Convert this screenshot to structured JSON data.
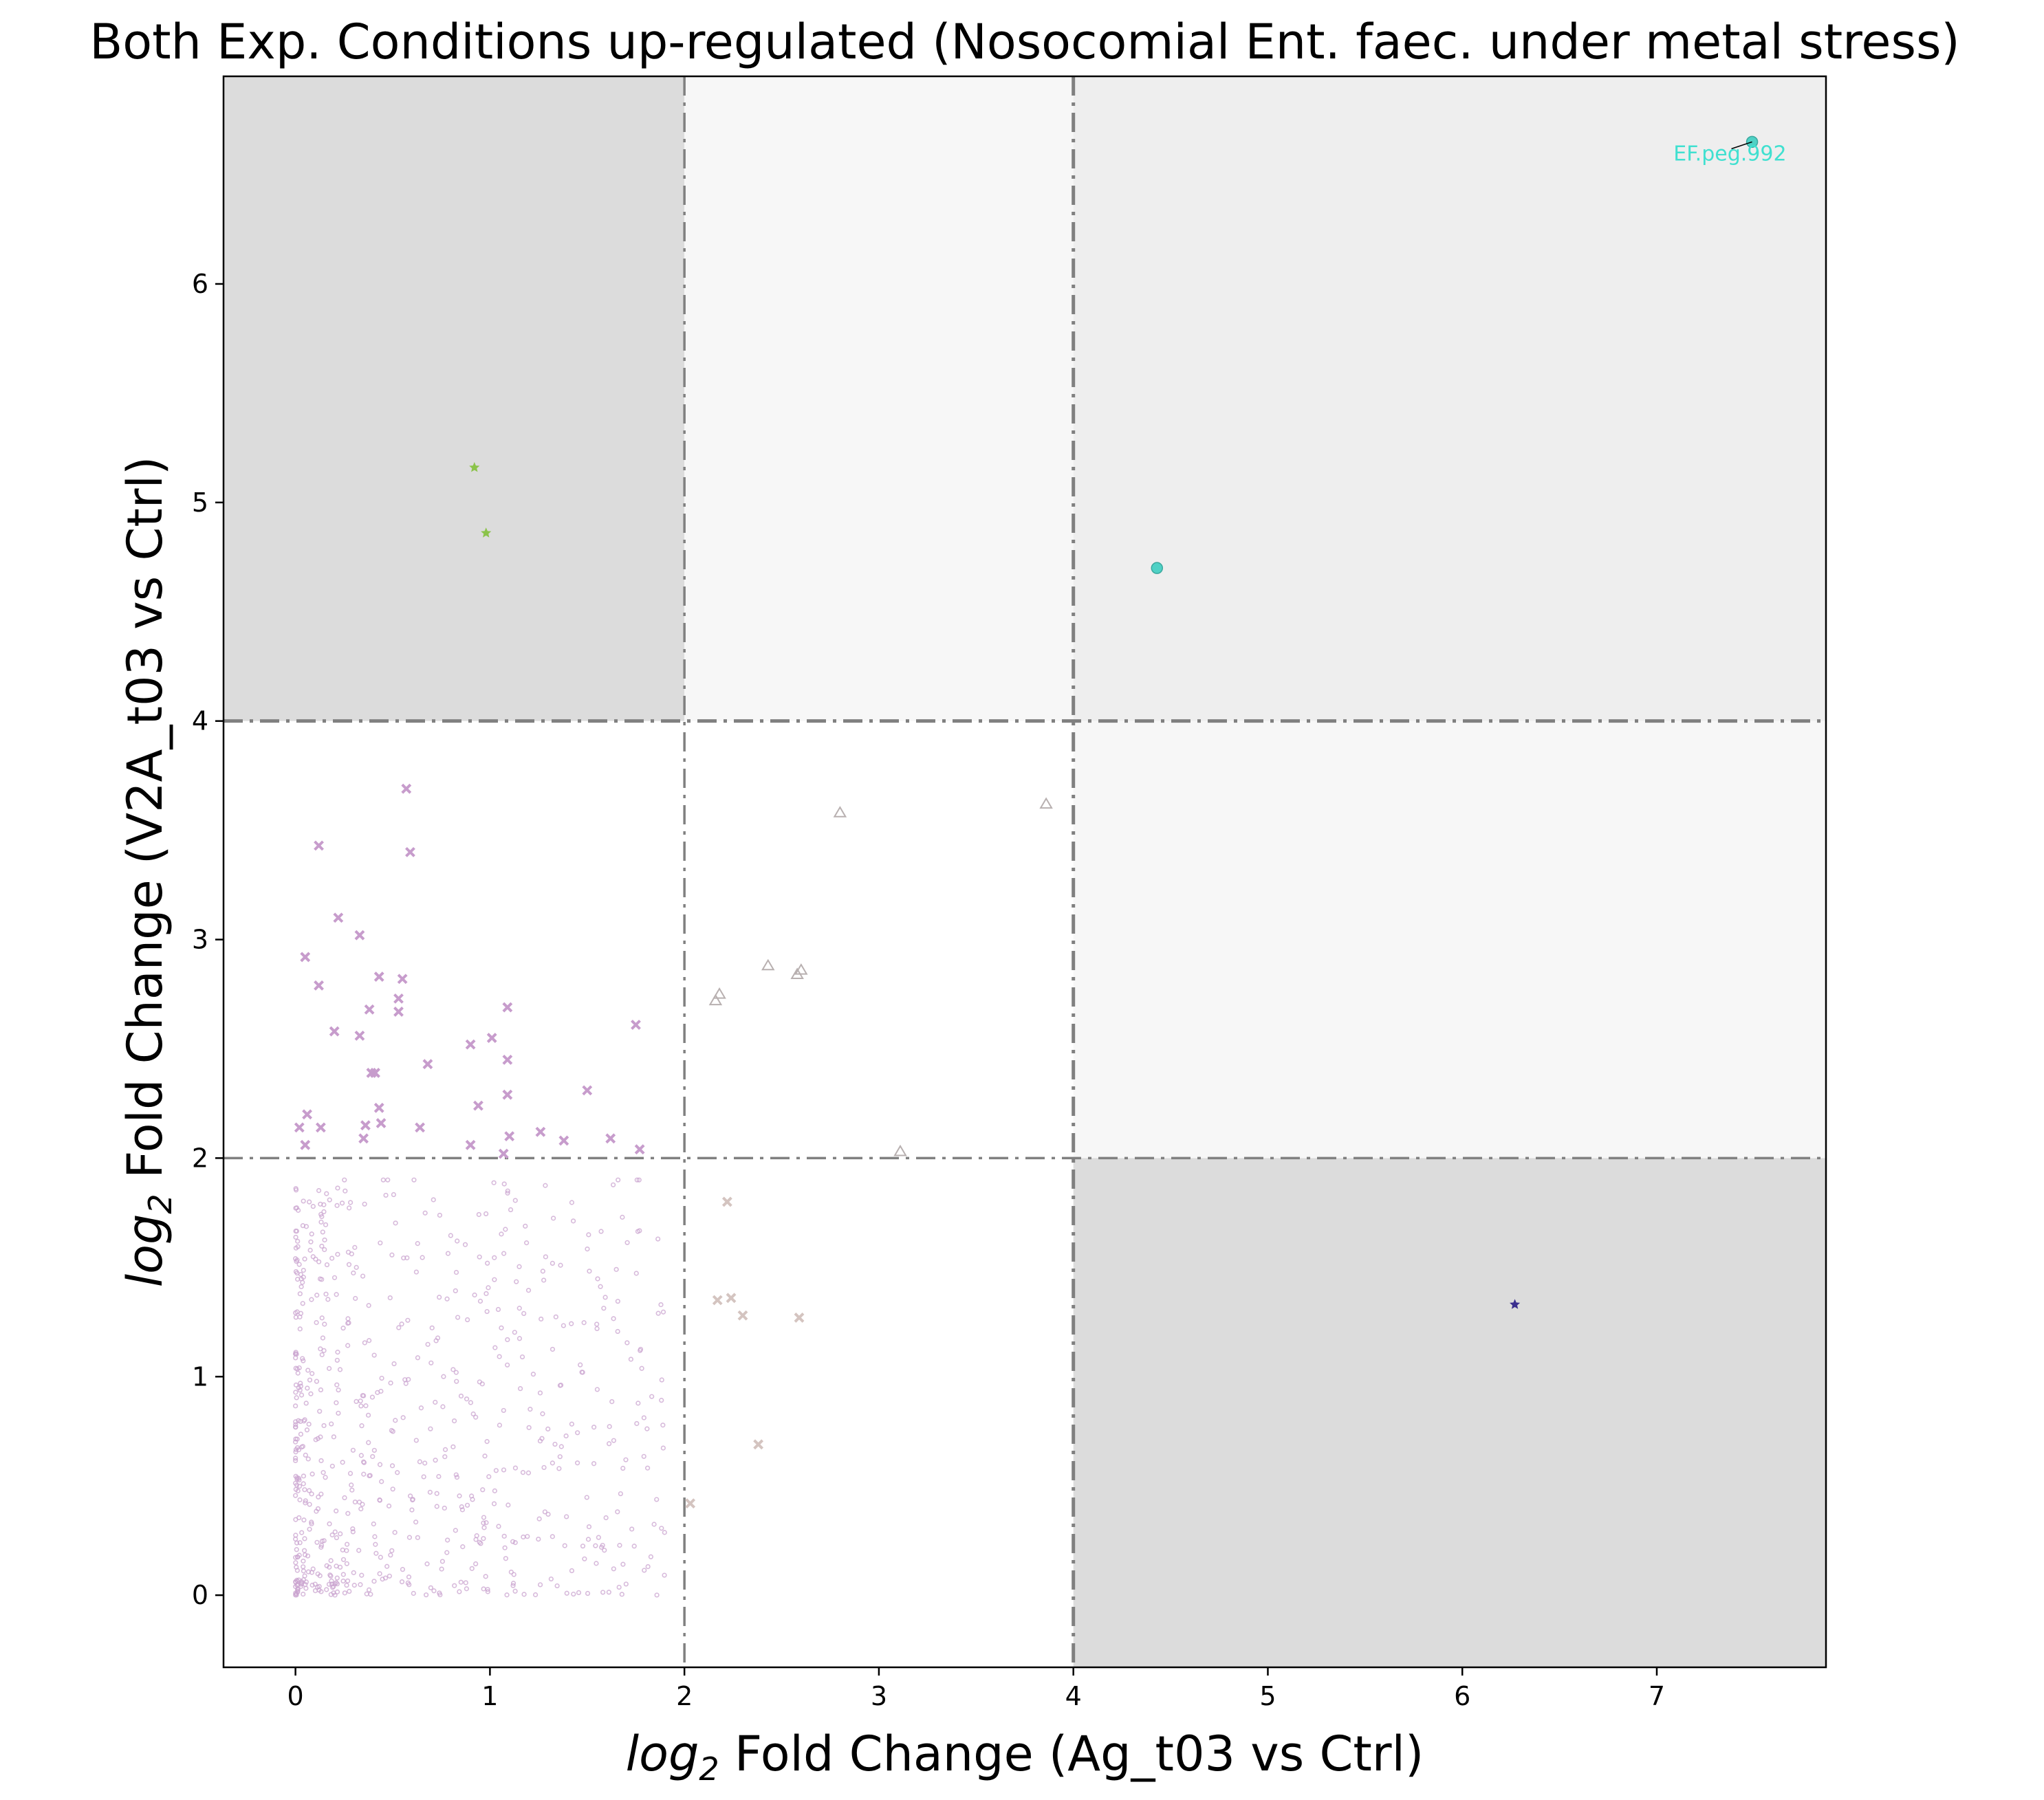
{
  "chart_data": {
    "type": "scatter",
    "title": "Both Exp. Conditions up-regulated (Nosocomial Ent. faec. under metal stress)",
    "xlabel_prefix": "log",
    "xlabel_sub": "2",
    "xlabel_rest": " Fold Change (Ag_t03 vs Ctrl)",
    "ylabel_prefix": "log",
    "ylabel_sub": "2",
    "ylabel_rest": " Fold Change (V2A_t03 vs Ctrl)",
    "xlim": [
      -0.37,
      7.87
    ],
    "ylim": [
      -0.33,
      6.95
    ],
    "xticks": [
      0,
      1,
      2,
      3,
      4,
      5,
      6,
      7
    ],
    "yticks": [
      0,
      1,
      2,
      3,
      4,
      5,
      6
    ],
    "thresholds": {
      "x": [
        2,
        4
      ],
      "y": [
        2,
        4
      ]
    },
    "quadrant_shading": [
      {
        "x": [
          -0.37,
          2
        ],
        "y": [
          4,
          6.95
        ],
        "color": "#dcdcdc"
      },
      {
        "x": [
          2,
          4
        ],
        "y": [
          4,
          6.95
        ],
        "color": "#f7f7f7"
      },
      {
        "x": [
          4,
          7.87
        ],
        "y": [
          4,
          6.95
        ],
        "color": "#eeeeee"
      },
      {
        "x": [
          4,
          7.87
        ],
        "y": [
          2,
          4
        ],
        "color": "#f7f7f7"
      },
      {
        "x": [
          4,
          7.87
        ],
        "y": [
          -0.33,
          2
        ],
        "color": "#dcdcdc"
      }
    ],
    "background_cloud": {
      "description_free": true,
      "approx_count": 700,
      "x_range": [
        0,
        1.9
      ],
      "y_range": [
        0,
        1.9
      ],
      "color": "#c9a3cf"
    },
    "series": [
      {
        "marker": "x",
        "color": "#c79ccc",
        "points": [
          [
            0.57,
            3.69
          ],
          [
            0.12,
            3.43
          ],
          [
            0.59,
            3.4
          ],
          [
            0.22,
            3.1
          ],
          [
            0.33,
            3.02
          ],
          [
            0.05,
            2.92
          ],
          [
            0.43,
            2.83
          ],
          [
            0.55,
            2.82
          ],
          [
            0.12,
            2.79
          ],
          [
            0.53,
            2.73
          ],
          [
            0.38,
            2.68
          ],
          [
            0.53,
            2.67
          ],
          [
            1.09,
            2.69
          ],
          [
            1.75,
            2.61
          ],
          [
            0.2,
            2.58
          ],
          [
            0.33,
            2.56
          ],
          [
            1.01,
            2.55
          ],
          [
            0.9,
            2.52
          ],
          [
            1.09,
            2.45
          ],
          [
            0.68,
            2.43
          ],
          [
            0.39,
            2.39
          ],
          [
            0.41,
            2.39
          ],
          [
            1.5,
            2.31
          ],
          [
            1.09,
            2.29
          ],
          [
            0.94,
            2.24
          ],
          [
            0.43,
            2.23
          ],
          [
            0.44,
            2.16
          ],
          [
            0.06,
            2.2
          ],
          [
            0.36,
            2.15
          ],
          [
            0.64,
            2.14
          ],
          [
            0.13,
            2.14
          ],
          [
            0.02,
            2.14
          ],
          [
            0.35,
            2.09
          ],
          [
            1.26,
            2.12
          ],
          [
            1.1,
            2.1
          ],
          [
            1.38,
            2.08
          ],
          [
            1.62,
            2.09
          ],
          [
            0.05,
            2.06
          ],
          [
            0.9,
            2.06
          ],
          [
            1.77,
            2.04
          ],
          [
            1.07,
            2.02
          ]
        ]
      },
      {
        "marker": "triangle",
        "color": "#b8b0b0",
        "points": [
          [
            2.8,
            3.58
          ],
          [
            3.86,
            3.62
          ],
          [
            2.43,
            2.88
          ],
          [
            2.6,
            2.86
          ],
          [
            2.58,
            2.84
          ],
          [
            2.18,
            2.75
          ],
          [
            2.16,
            2.72
          ],
          [
            3.11,
            2.03
          ]
        ]
      },
      {
        "marker": "x",
        "color": "#d4c4c0",
        "points": [
          [
            2.22,
            1.8
          ],
          [
            2.24,
            1.36
          ],
          [
            2.17,
            1.35
          ],
          [
            2.3,
            1.28
          ],
          [
            2.59,
            1.27
          ],
          [
            2.38,
            0.69
          ],
          [
            2.03,
            0.42
          ]
        ]
      },
      {
        "marker": "star",
        "color": "#8bc34a",
        "points": [
          [
            0.92,
            5.16
          ],
          [
            0.98,
            4.86
          ]
        ]
      },
      {
        "marker": "circle",
        "color": "#4fd1c5",
        "points": [
          [
            4.43,
            4.7
          ],
          [
            7.49,
            6.65
          ]
        ]
      },
      {
        "marker": "star",
        "color": "#3b2f8f",
        "points": [
          [
            6.27,
            1.33
          ]
        ]
      }
    ],
    "annotations": [
      {
        "text": "EF.peg.992",
        "x": 7.49,
        "y": 6.65,
        "color": "#40e0d0"
      }
    ],
    "grid": false,
    "legend": "none"
  }
}
